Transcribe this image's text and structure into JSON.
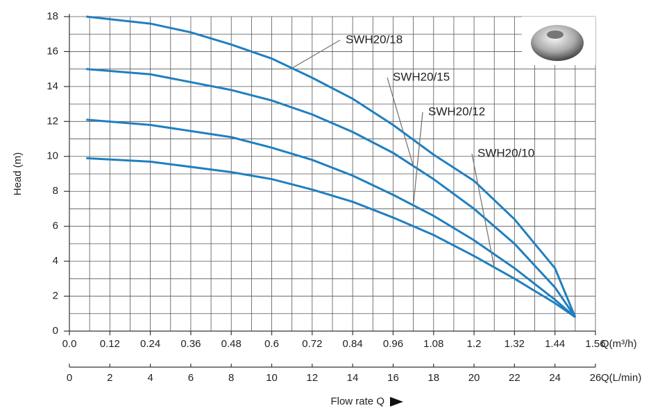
{
  "chart_data": {
    "type": "line",
    "y_label": "Head (m)",
    "x_label": "Q(m³/h)",
    "x2_label": "Q(L/min)",
    "x_title": "Flow rate Q",
    "xlim": [
      0,
      1.56
    ],
    "ylim": [
      0,
      18
    ],
    "x2lim": [
      0,
      26
    ],
    "xticks": [
      {
        "value": 0,
        "label": "0.0"
      },
      0.12,
      0.24,
      0.36,
      0.48,
      0.6,
      0.72,
      0.84,
      0.96,
      1.08,
      1.2,
      1.32,
      1.44,
      1.56
    ],
    "yticks": [
      0,
      2,
      4,
      6,
      8,
      10,
      12,
      14,
      16,
      18
    ],
    "x2ticks": [
      0,
      2,
      4,
      6,
      8,
      10,
      12,
      14,
      16,
      18,
      20,
      22,
      24,
      26
    ],
    "grid": true,
    "series": [
      {
        "name": "SWH20/18",
        "color": "#1f7fc0",
        "x": [
          0.05,
          0.24,
          0.36,
          0.48,
          0.6,
          0.72,
          0.84,
          0.96,
          1.08,
          1.2,
          1.32,
          1.44,
          1.5
        ],
        "values": [
          18,
          17.6,
          17.1,
          16.4,
          15.6,
          14.5,
          13.3,
          11.8,
          10.1,
          8.6,
          6.4,
          3.6,
          0.8
        ]
      },
      {
        "name": "SWH20/15",
        "color": "#1f7fc0",
        "x": [
          0.05,
          0.24,
          0.48,
          0.6,
          0.72,
          0.84,
          0.96,
          1.08,
          1.2,
          1.32,
          1.44,
          1.5
        ],
        "values": [
          15,
          14.7,
          13.8,
          13.2,
          12.4,
          11.4,
          10.2,
          8.7,
          7.0,
          5.0,
          2.5,
          0.8
        ]
      },
      {
        "name": "SWH20/12",
        "color": "#1f7fc0",
        "x": [
          0.05,
          0.24,
          0.48,
          0.6,
          0.72,
          0.84,
          0.96,
          1.08,
          1.2,
          1.32,
          1.44,
          1.5
        ],
        "values": [
          12.1,
          11.8,
          11.1,
          10.5,
          9.8,
          8.9,
          7.8,
          6.6,
          5.2,
          3.6,
          1.8,
          0.8
        ]
      },
      {
        "name": "SWH20/10",
        "color": "#1f7fc0",
        "x": [
          0.05,
          0.24,
          0.48,
          0.6,
          0.72,
          0.84,
          0.96,
          1.08,
          1.2,
          1.32,
          1.44,
          1.5
        ],
        "values": [
          9.9,
          9.7,
          9.1,
          8.7,
          8.1,
          7.4,
          6.5,
          5.5,
          4.3,
          3.0,
          1.6,
          0.8
        ]
      }
    ]
  }
}
